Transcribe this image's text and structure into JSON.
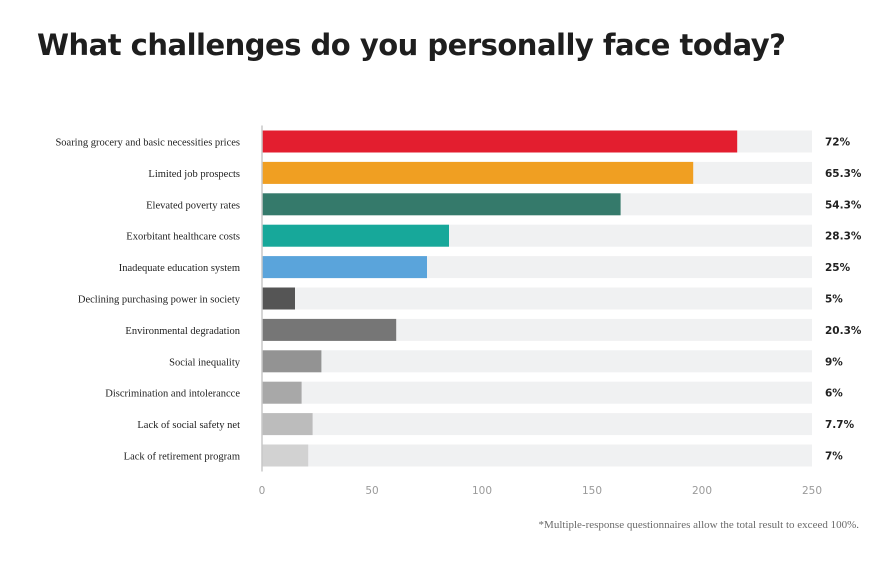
{
  "chart_data": {
    "type": "bar",
    "orientation": "horizontal",
    "title": "What challenges do you personally face today?",
    "categories": [
      "Soaring grocery and basic necessities prices",
      "Limited job prospects",
      "Elevated poverty rates",
      "Exorbitant healthcare costs",
      "Inadequate education system",
      "Declining purchasing power in society",
      "Environmental degradation",
      "Social inequality",
      "Discrimination and intolerancce",
      "Lack of social safety net",
      "Lack of retirement program"
    ],
    "values": [
      216,
      196,
      163,
      85,
      75,
      15,
      61,
      27,
      18,
      23,
      21
    ],
    "value_labels": [
      "72%",
      "65.3%",
      "54.3%",
      "28.3%",
      "25%",
      "5%",
      "20.3%",
      "9%",
      "6%",
      "7.7%",
      "7%"
    ],
    "colors": [
      "#e31e2f",
      "#f09f22",
      "#357a6b",
      "#17a89a",
      "#5aa4db",
      "#555555",
      "#767676",
      "#939393",
      "#a8a8a8",
      "#bcbcbc",
      "#d2d2d2"
    ],
    "track_color": "#f0f1f2",
    "xlim": [
      0,
      250
    ],
    "xticks": [
      "0",
      "50",
      "100",
      "150",
      "200",
      "250"
    ],
    "grid": false
  },
  "footnote": "*Multiple-response questionnaires allow the total result to exceed 100%."
}
